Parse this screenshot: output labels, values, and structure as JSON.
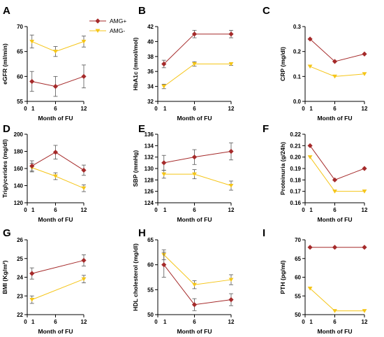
{
  "legend": {
    "items": [
      {
        "label": "AMG+",
        "color": "#a52a2a",
        "marker": "diamond"
      },
      {
        "label": "AMG-",
        "color": "#f5c518",
        "marker": "triangle-down"
      }
    ]
  },
  "chart_data": [
    {
      "panel": "A",
      "type": "line",
      "xlabel": "Month of FU",
      "ylabel": "eGFR (ml/min)",
      "xticks": [
        "0",
        "1",
        "6",
        "12"
      ],
      "xlim": [
        0,
        12
      ],
      "ylim": [
        55,
        70
      ],
      "yticks": [
        55,
        60,
        65,
        70
      ],
      "x": [
        1,
        6,
        12
      ],
      "series": [
        {
          "name": "AMG+",
          "values": [
            59,
            58,
            60
          ],
          "errors": [
            2,
            2,
            2.3
          ]
        },
        {
          "name": "AMG-",
          "values": [
            67,
            65,
            67
          ],
          "errors": [
            1.3,
            1,
            1.1
          ]
        }
      ]
    },
    {
      "panel": "B",
      "type": "line",
      "xlabel": "Month of FU",
      "ylabel": "HbA1c (mmol/mol)",
      "xticks": [
        "0",
        "1",
        "6",
        "12"
      ],
      "xlim": [
        0,
        12
      ],
      "ylim": [
        32,
        42
      ],
      "yticks": [
        32,
        34,
        36,
        38,
        40,
        42
      ],
      "x": [
        1,
        6,
        12
      ],
      "series": [
        {
          "name": "AMG+",
          "values": [
            37,
            41,
            41
          ],
          "errors": [
            0.5,
            0.5,
            0.5
          ]
        },
        {
          "name": "AMG-",
          "values": [
            34,
            37,
            37
          ],
          "errors": [
            0.3,
            0.3,
            0.2
          ]
        }
      ]
    },
    {
      "panel": "C",
      "type": "line",
      "xlabel": "Month of FU",
      "ylabel": "CRP (mg/dl)",
      "xticks": [
        "0",
        "1",
        "6",
        "12"
      ],
      "xlim": [
        0,
        12
      ],
      "ylim": [
        0.0,
        0.3
      ],
      "yticks": [
        "0.0",
        "0.1",
        "0.2",
        "0.3"
      ],
      "x": [
        1,
        6,
        12
      ],
      "series": [
        {
          "name": "AMG+",
          "values": [
            0.25,
            0.16,
            0.19
          ],
          "errors": [
            0,
            0,
            0
          ]
        },
        {
          "name": "AMG-",
          "values": [
            0.14,
            0.1,
            0.11
          ],
          "errors": [
            0,
            0,
            0
          ]
        }
      ]
    },
    {
      "panel": "D",
      "type": "line",
      "xlabel": "Month of FU",
      "ylabel": "Triglycerides (mg/dl)",
      "xticks": [
        "0",
        "1",
        "6",
        "12"
      ],
      "xlim": [
        0,
        12
      ],
      "ylim": [
        120,
        200
      ],
      "yticks": [
        120,
        140,
        160,
        180,
        200
      ],
      "x": [
        1,
        6,
        12
      ],
      "series": [
        {
          "name": "AMG+",
          "values": [
            163,
            179,
            158
          ],
          "errors": [
            6,
            8,
            6
          ]
        },
        {
          "name": "AMG-",
          "values": [
            161,
            151,
            137
          ],
          "errors": [
            5,
            4,
            4
          ]
        }
      ]
    },
    {
      "panel": "E",
      "type": "line",
      "xlabel": "Month of FU",
      "ylabel": "SBP (mmHg)",
      "xticks": [
        "0",
        "1",
        "6",
        "12"
      ],
      "xlim": [
        0,
        12
      ],
      "ylim": [
        124,
        136
      ],
      "yticks": [
        124,
        126,
        128,
        130,
        132,
        134,
        136
      ],
      "x": [
        1,
        6,
        12
      ],
      "series": [
        {
          "name": "AMG+",
          "values": [
            131,
            132,
            133
          ],
          "errors": [
            1.3,
            1.3,
            1.5
          ]
        },
        {
          "name": "AMG-",
          "values": [
            129,
            129,
            127
          ],
          "errors": [
            0.7,
            0.8,
            0.8
          ]
        }
      ]
    },
    {
      "panel": "F",
      "type": "line",
      "xlabel": "Month of FU",
      "ylabel": "Proteinuria (g/24h)",
      "xticks": [
        "0",
        "1",
        "6",
        "12"
      ],
      "xlim": [
        0,
        12
      ],
      "ylim": [
        0.16,
        0.22
      ],
      "yticks": [
        "0.16",
        "0.17",
        "0.18",
        "0.19",
        "0.20",
        "0.21",
        "0.22"
      ],
      "x": [
        1,
        6,
        12
      ],
      "series": [
        {
          "name": "AMG+",
          "values": [
            0.21,
            0.18,
            0.19
          ],
          "errors": [
            0,
            0,
            0
          ]
        },
        {
          "name": "AMG-",
          "values": [
            0.2,
            0.17,
            0.17
          ],
          "errors": [
            0,
            0,
            0
          ]
        }
      ]
    },
    {
      "panel": "G",
      "type": "line",
      "xlabel": "Month of FU",
      "ylabel": "BMI (Kg/m²)",
      "xticks": [
        "0",
        "1",
        "6",
        "12"
      ],
      "xlim": [
        0,
        12
      ],
      "ylim": [
        22,
        26
      ],
      "yticks": [
        22,
        23,
        24,
        25,
        26
      ],
      "x": [
        1,
        12
      ],
      "series": [
        {
          "name": "AMG+",
          "values": [
            24.2,
            24.9
          ],
          "errors": [
            0.3,
            0.3
          ]
        },
        {
          "name": "AMG-",
          "values": [
            22.8,
            23.9
          ],
          "errors": [
            0.2,
            0.2
          ]
        }
      ]
    },
    {
      "panel": "H",
      "type": "line",
      "xlabel": "Month of FU",
      "ylabel": "HDL cholesterol (mg/dl)",
      "xticks": [
        "0",
        "1",
        "6",
        "12"
      ],
      "xlim": [
        0,
        12
      ],
      "ylim": [
        50,
        65
      ],
      "yticks": [
        50,
        55,
        60,
        65
      ],
      "x": [
        1,
        6,
        12
      ],
      "series": [
        {
          "name": "AMG+",
          "values": [
            60,
            52,
            53
          ],
          "errors": [
            2.5,
            1.2,
            1.2
          ]
        },
        {
          "name": "AMG-",
          "values": [
            62,
            56,
            57
          ],
          "errors": [
            1,
            0.8,
            1
          ]
        }
      ]
    },
    {
      "panel": "I",
      "type": "line",
      "xlabel": "Month of FU",
      "ylabel": "PTH (pg/ml)",
      "xticks": [
        "0",
        "1",
        "6",
        "12"
      ],
      "xlim": [
        0,
        12
      ],
      "ylim": [
        50,
        70
      ],
      "yticks": [
        50,
        55,
        60,
        65,
        70
      ],
      "x": [
        1,
        6,
        12
      ],
      "series": [
        {
          "name": "AMG+",
          "values": [
            68,
            68,
            68
          ],
          "errors": [
            0,
            0,
            0
          ]
        },
        {
          "name": "AMG-",
          "values": [
            57,
            51,
            51
          ],
          "errors": [
            0,
            0,
            0
          ]
        }
      ]
    }
  ]
}
